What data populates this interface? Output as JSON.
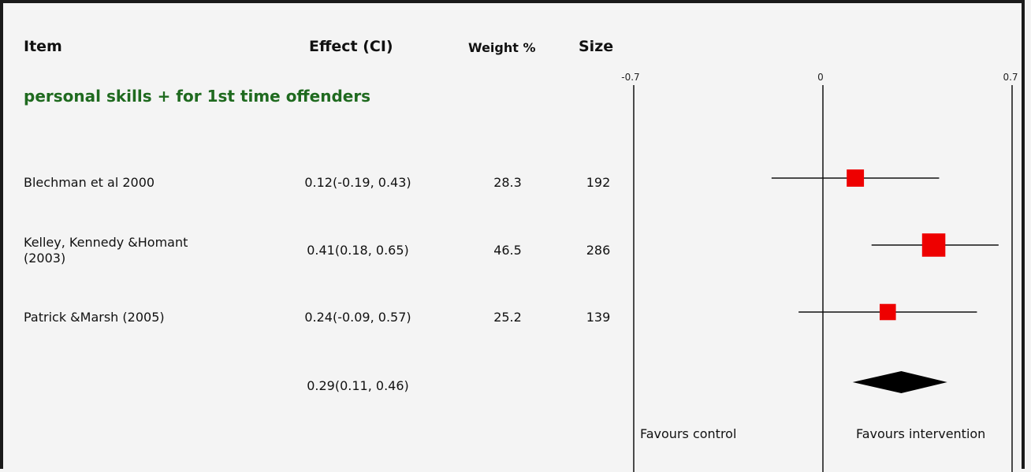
{
  "headers": {
    "item": "Item",
    "effect": "Effect (CI)",
    "weight": "Weight %",
    "size": "Size"
  },
  "group_label": "personal skills + for 1st time offenders",
  "studies": [
    {
      "name_lines": [
        "Blechman et al 2000"
      ],
      "effect_text": "0.12(-0.19, 0.43)",
      "weight_text": "28.3",
      "size_text": "192"
    },
    {
      "name_lines": [
        "Kelley, Kennedy &Homant",
        "(2003)"
      ],
      "effect_text": "0.41(0.18, 0.65)",
      "weight_text": "46.5",
      "size_text": "286"
    },
    {
      "name_lines": [
        "Patrick &Marsh (2005)"
      ],
      "effect_text": "0.24(-0.09, 0.57)",
      "weight_text": "25.2",
      "size_text": "139"
    }
  ],
  "pooled": {
    "effect_text": "0.29(0.11, 0.46)"
  },
  "favours": {
    "left": "Favours control",
    "right": "Favours intervention"
  },
  "colors": {
    "marker": "#ee0000",
    "group_label": "#1f6a1f",
    "line": "#111111"
  },
  "chart_data": {
    "type": "forest",
    "axis": {
      "min": -0.7,
      "max": 0.7,
      "ticks": [
        "-0.7",
        "0",
        "0.7"
      ],
      "tick_values": [
        -0.7,
        0,
        0.7
      ]
    },
    "studies": [
      {
        "name": "Blechman et al 2000",
        "effect": 0.12,
        "ci": [
          -0.19,
          0.43
        ],
        "weight": 28.3,
        "size": 192
      },
      {
        "name": "Kelley, Kennedy &Homant (2003)",
        "effect": 0.41,
        "ci": [
          0.18,
          0.65
        ],
        "weight": 46.5,
        "size": 286
      },
      {
        "name": "Patrick &Marsh (2005)",
        "effect": 0.24,
        "ci": [
          -0.09,
          0.57
        ],
        "weight": 25.2,
        "size": 139
      }
    ],
    "pooled": {
      "effect": 0.29,
      "ci": [
        0.11,
        0.46
      ]
    }
  }
}
